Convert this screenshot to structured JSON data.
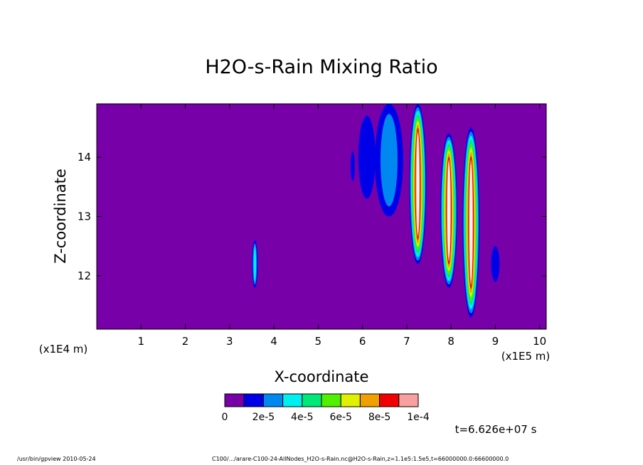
{
  "chart_data": {
    "type": "heatmap",
    "title": "H2O-s-Rain Mixing Ratio",
    "xlabel": "X-coordinate",
    "ylabel": "Z-coordinate",
    "x_units": "(x1E5 m)",
    "y_units": "(x1E4 m)",
    "xlim": [
      0,
      1.015
    ],
    "ylim": [
      1.11,
      1.49
    ],
    "x_ticks": [
      {
        "value": 0.1,
        "label": "1"
      },
      {
        "value": 0.2,
        "label": "2"
      },
      {
        "value": 0.3,
        "label": "3"
      },
      {
        "value": 0.4,
        "label": "4"
      },
      {
        "value": 0.5,
        "label": "5"
      },
      {
        "value": 0.6,
        "label": "6"
      },
      {
        "value": 0.7,
        "label": "7"
      },
      {
        "value": 0.8,
        "label": "8"
      },
      {
        "value": 0.9,
        "label": "9"
      },
      {
        "value": 1.0,
        "label": "10"
      }
    ],
    "y_ticks": [
      {
        "value": 1.2,
        "label": "12"
      },
      {
        "value": 1.3,
        "label": "13"
      },
      {
        "value": 1.4,
        "label": "14"
      }
    ],
    "background_color": "#7800a8",
    "colorbar": {
      "colors": [
        "#7800a8",
        "#0000e8",
        "#0088f0",
        "#00f0f0",
        "#00e878",
        "#50f000",
        "#e0f000",
        "#f0a000",
        "#f00000",
        "#f8a0a0"
      ],
      "labels": [
        "0",
        "2e-5",
        "4e-5",
        "6e-5",
        "8e-5",
        "1e-4"
      ]
    },
    "features": [
      {
        "name": "small-plume",
        "x": 0.357,
        "z": [
          1.18,
          1.26
        ],
        "width": 0.004,
        "peak": 3
      },
      {
        "name": "thin-wisp",
        "x": 0.578,
        "z": [
          1.36,
          1.41
        ],
        "width": 0.003,
        "peak": 1
      },
      {
        "name": "plume-60",
        "x": 0.61,
        "z": [
          1.33,
          1.47
        ],
        "width": 0.012,
        "peak": 1
      },
      {
        "name": "plume-65",
        "x": 0.66,
        "z": [
          1.3,
          1.49
        ],
        "width": 0.02,
        "peak": 2
      },
      {
        "name": "core-73",
        "x": 0.725,
        "z": [
          1.22,
          1.49
        ],
        "width": 0.012,
        "peak": 10
      },
      {
        "name": "core-80",
        "x": 0.795,
        "z": [
          1.18,
          1.44
        ],
        "width": 0.012,
        "peak": 10
      },
      {
        "name": "core-85",
        "x": 0.845,
        "z": [
          1.13,
          1.45
        ],
        "width": 0.012,
        "peak": 10
      },
      {
        "name": "plume-90",
        "x": 0.9,
        "z": [
          1.19,
          1.25
        ],
        "width": 0.006,
        "peak": 1
      }
    ]
  },
  "time_label": "t=6.626e+07 s",
  "footer": {
    "left": "/usr/bin/gpview  2010-05-24",
    "right": "C100/.../arare-C100-24-AllNodes_H2O-s-Rain.nc@H2O-s-Rain,z=1.1e5:1.5e5,t=66000000.0:66600000.0"
  }
}
